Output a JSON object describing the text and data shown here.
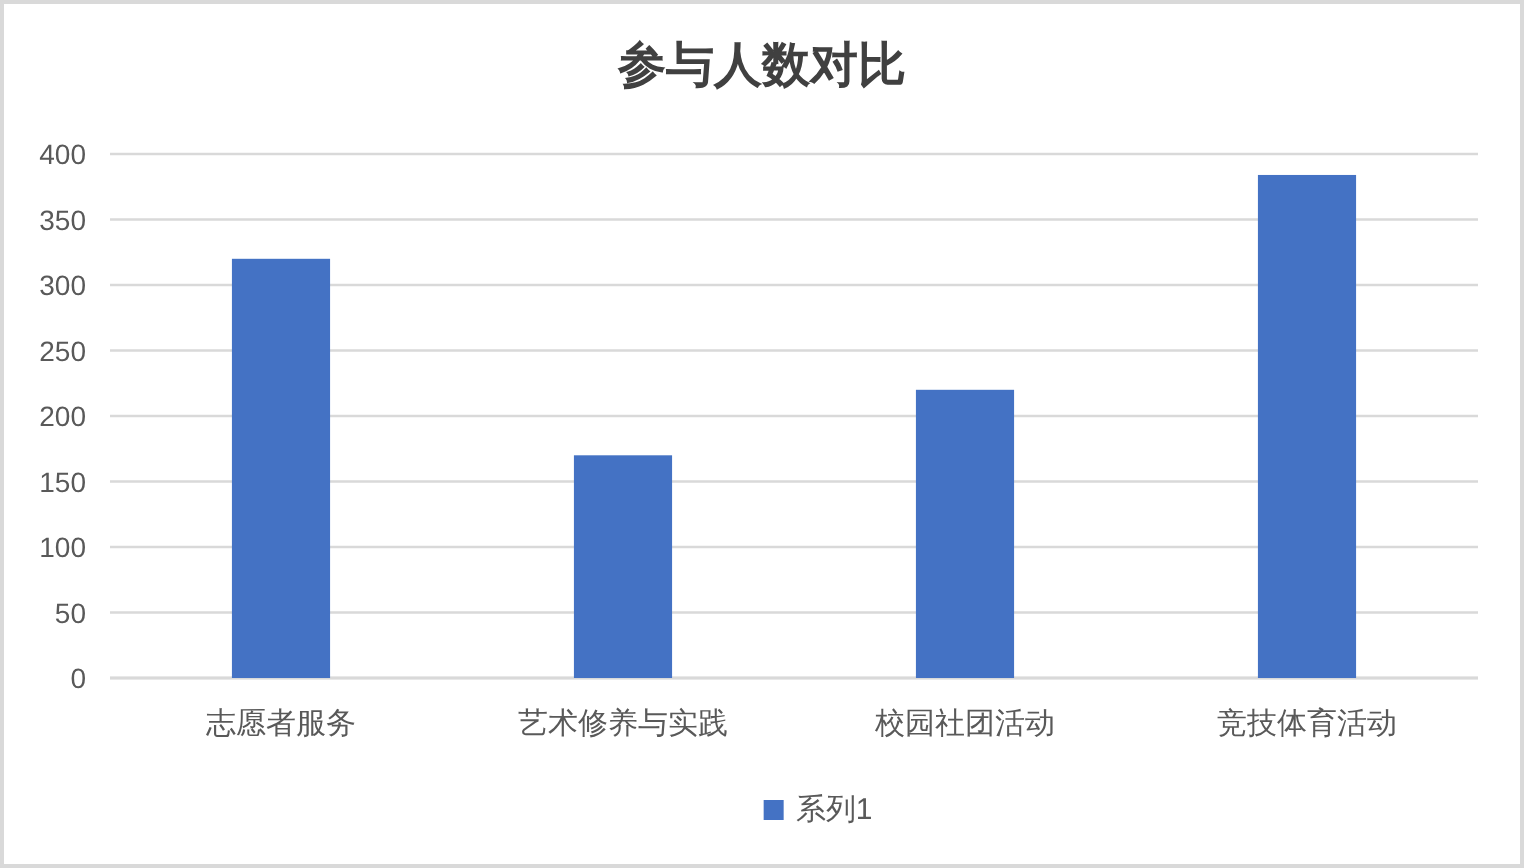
{
  "chart_data": {
    "type": "bar",
    "title": "参与人数对比",
    "categories": [
      "志愿者服务",
      "艺术修养与实践",
      "校园社团活动",
      "竞技体育活动"
    ],
    "series": [
      {
        "name": "系列1",
        "color": "#4472c4",
        "values": [
          320,
          170,
          220,
          384
        ]
      }
    ],
    "ylim": [
      0,
      400
    ],
    "yticks": [
      0,
      50,
      100,
      150,
      200,
      250,
      300,
      350,
      400
    ],
    "grid": "y",
    "legend": "bottom"
  }
}
